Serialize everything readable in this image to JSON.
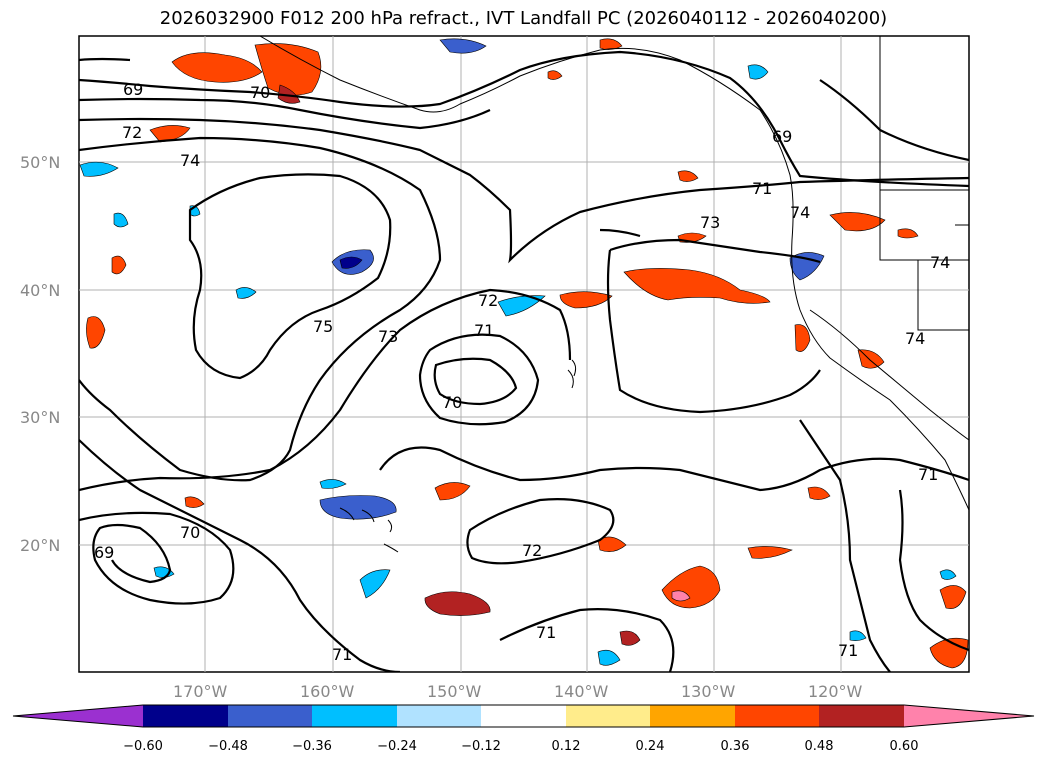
{
  "title": "2026032900 F012 200 hPa refract., IVT Landfall PC (2026040112 - 2026040200)",
  "lat_labels": [
    "50°N",
    "40°N",
    "30°N",
    "20°N"
  ],
  "lon_labels": [
    "170°W",
    "160°W",
    "150°W",
    "140°W",
    "130°W",
    "120°W"
  ],
  "colorbar": {
    "ticks": [
      "−0.60",
      "−0.48",
      "−0.36",
      "−0.24",
      "−0.12",
      "0.12",
      "0.24",
      "0.36",
      "0.48",
      "0.60"
    ],
    "colors": [
      "#9b30d0",
      "#00008b",
      "#3a5fcd",
      "#00bfff",
      "#b0e2ff",
      "#ffffff",
      "#ffec8b",
      "#ffa500",
      "#ff4500",
      "#b22222",
      "#ff82ab"
    ]
  },
  "contour_labels": [
    "69",
    "70",
    "72",
    "74",
    "75",
    "73",
    "72",
    "71",
    "70",
    "70",
    "69",
    "72",
    "71",
    "71",
    "69",
    "71",
    "73",
    "74",
    "74",
    "74",
    "71",
    "71"
  ]
}
